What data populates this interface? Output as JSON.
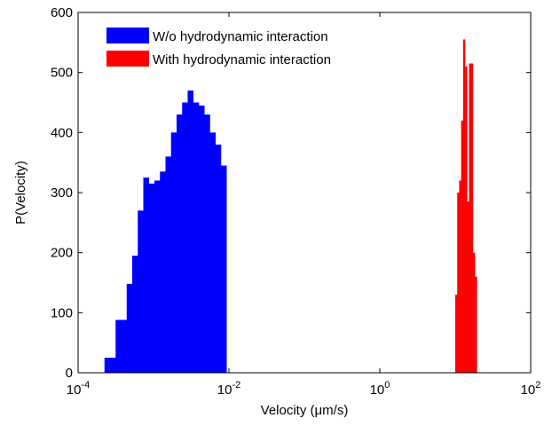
{
  "chart_data": {
    "type": "bar",
    "title": "",
    "xlabel": "Velocity (μm/s)",
    "ylabel": "P(Velocity)",
    "xscale": "log",
    "xlim": [
      0.0001,
      100
    ],
    "ylim": [
      0,
      600
    ],
    "x_ticks": [
      {
        "value": 0.0001,
        "base": "10",
        "exp": "-4"
      },
      {
        "value": 0.01,
        "base": "10",
        "exp": "-2"
      },
      {
        "value": 1,
        "base": "10",
        "exp": "0"
      },
      {
        "value": 100,
        "base": "10",
        "exp": "2"
      }
    ],
    "y_ticks": [
      "0",
      "100",
      "200",
      "300",
      "400",
      "500",
      "600"
    ],
    "grid": false,
    "legend_position": "top-left",
    "series": [
      {
        "name": "W/o hydrodynamic interaction",
        "color": "#0000ff",
        "log10_x_start": -3.65,
        "log10_x_width": 0.0735,
        "values": [
          25,
          25,
          88,
          88,
          148,
          195,
          270,
          325,
          315,
          320,
          335,
          360,
          400,
          430,
          450,
          470,
          450,
          445,
          430,
          400,
          380,
          345
        ]
      },
      {
        "name": "With hydrodynamic interaction",
        "color": "#ff0000",
        "log10_x_start": 1.0,
        "log10_x_width": 0.026,
        "values": [
          130,
          300,
          320,
          420,
          555,
          510,
          285,
          515,
          515,
          200,
          160
        ]
      }
    ]
  }
}
